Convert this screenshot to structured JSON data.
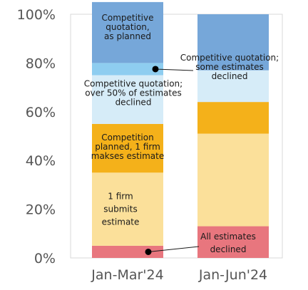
{
  "chart_data": {
    "type": "bar",
    "stacked": true,
    "categories": [
      "Jan-Mar'24",
      "Jan-Jun'24"
    ],
    "ylim": [
      0,
      100
    ],
    "yticks": [
      "0%",
      "20%",
      "40%",
      "60%",
      "80%",
      "100%"
    ],
    "grid": false,
    "series": [
      {
        "key": "all_declined",
        "color": "#e8767e",
        "values": [
          5,
          13
        ]
      },
      {
        "key": "one_firm",
        "color": "#fbe09a",
        "values": [
          30,
          38
        ]
      },
      {
        "key": "planned_one_firm",
        "color": "#f4b11a",
        "values": [
          20,
          13
        ]
      },
      {
        "key": "over50_declined",
        "color": "#d6ecf8",
        "values": [
          20,
          13
        ]
      },
      {
        "key": "some_declined",
        "color": "#8ecdf0",
        "values": [
          5,
          0
        ]
      },
      {
        "key": "as_planned",
        "color": "#76a7d9",
        "values": [
          25,
          23
        ]
      }
    ],
    "annotations": {
      "as_planned": [
        "Competitive",
        "quotation,",
        "as planned"
      ],
      "some_declined": [
        "Competitive quotation;",
        "some estimates",
        "declined"
      ],
      "over50_declined": [
        "Competitive quotation;",
        "over 50% of estimates",
        "declined"
      ],
      "planned_one_firm": [
        "Competition",
        "planned, 1 firm",
        "makses estimate"
      ],
      "one_firm": [
        "1 firm",
        "submits",
        "estimate"
      ],
      "all_declined": [
        "All estimates",
        "declined"
      ]
    }
  }
}
